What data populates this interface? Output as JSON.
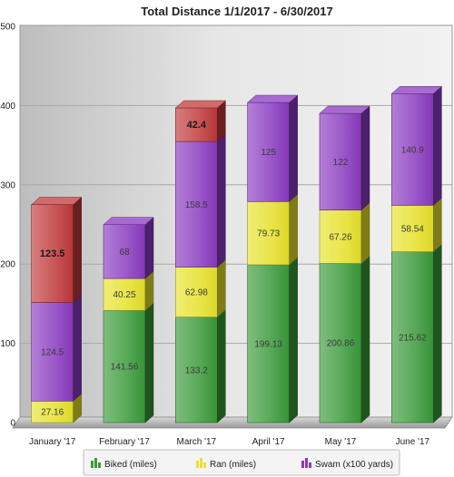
{
  "chart_data": {
    "type": "bar",
    "stacked": true,
    "title": "Total Distance 1/1/2017 - 6/30/2017",
    "categories": [
      "January '17",
      "February '17",
      "March '17",
      "April '17",
      "May '17",
      "June '17"
    ],
    "ylim": [
      0,
      500
    ],
    "yticks": [
      "0",
      "100",
      "200",
      "300",
      "400",
      "500"
    ],
    "grid": true,
    "legend_position": "bottom",
    "series": [
      {
        "name": "Biked (miles)",
        "color": "#3a9a3a",
        "values": [
          0,
          141.56,
          133.2,
          199.13,
          200.86,
          215.62
        ]
      },
      {
        "name": "Ran (miles)",
        "color": "#e6e22a",
        "values": [
          27.16,
          40.25,
          62.98,
          79.73,
          67.26,
          58.54
        ]
      },
      {
        "name": "Swam (x100 yards)",
        "color": "#8a3ac0",
        "values": [
          124.5,
          68,
          158.5,
          125,
          122,
          140.9
        ]
      },
      {
        "color": "#c0393b",
        "values": [
          123.5,
          0,
          42.4,
          0,
          0,
          0
        ]
      }
    ],
    "value_labels": [
      [
        "",
        "27.16",
        "124.5",
        "123.5"
      ],
      [
        "141.56",
        "40.25",
        "68",
        ""
      ],
      [
        "133.2",
        "62.98",
        "158.5",
        "42.4"
      ],
      [
        "199.13",
        "79.73",
        "125",
        ""
      ],
      [
        "200.86",
        "67.26",
        "122",
        ""
      ],
      [
        "215.62",
        "58.54",
        "140.9",
        ""
      ]
    ]
  }
}
